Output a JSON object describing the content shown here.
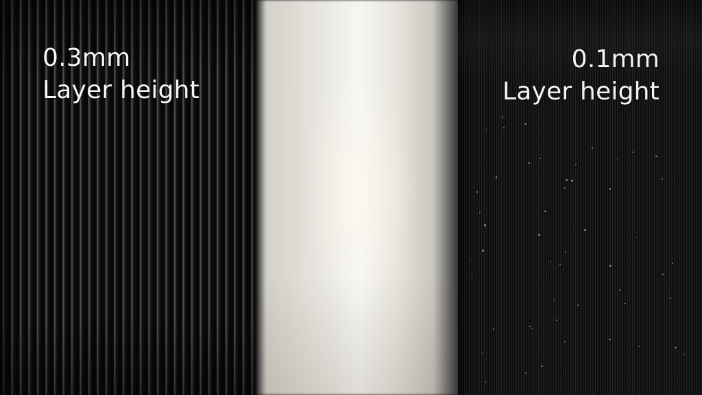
{
  "left_label": {
    "value": "0.3mm",
    "text": "Layer height"
  },
  "right_label": {
    "value": "0.1mm",
    "text": "Layer height"
  },
  "colors": {
    "print_surface": "#141414",
    "center_object": "#f2f0ea",
    "caption_text": "#f4f4f4"
  }
}
